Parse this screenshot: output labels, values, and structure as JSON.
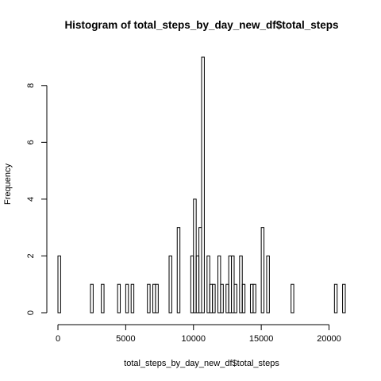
{
  "chart_data": {
    "type": "bar",
    "title": "Histogram of total_steps_by_day_new_df$total_steps",
    "xlabel": "total_steps_by_day_new_df$total_steps",
    "ylabel": "Frequency",
    "xlim": [
      0,
      21200
    ],
    "ylim": [
      0,
      9
    ],
    "bin_width": 200,
    "x_ticks": [
      0,
      5000,
      10000,
      15000,
      20000
    ],
    "x_tick_labels": [
      "0",
      "5000",
      "10000",
      "15000",
      "20000"
    ],
    "y_ticks": [
      0,
      2,
      4,
      6,
      8
    ],
    "y_tick_labels": [
      "0",
      "2",
      "4",
      "6",
      "8"
    ],
    "grid": false,
    "bars": [
      {
        "x0": 0,
        "x1": 200,
        "count": 2
      },
      {
        "x0": 2400,
        "x1": 2600,
        "count": 1
      },
      {
        "x0": 3200,
        "x1": 3400,
        "count": 1
      },
      {
        "x0": 4400,
        "x1": 4600,
        "count": 1
      },
      {
        "x0": 5000,
        "x1": 5200,
        "count": 1
      },
      {
        "x0": 5400,
        "x1": 5600,
        "count": 1
      },
      {
        "x0": 6600,
        "x1": 6800,
        "count": 1
      },
      {
        "x0": 7000,
        "x1": 7200,
        "count": 1
      },
      {
        "x0": 7200,
        "x1": 7400,
        "count": 1
      },
      {
        "x0": 8200,
        "x1": 8400,
        "count": 2
      },
      {
        "x0": 8800,
        "x1": 9000,
        "count": 3
      },
      {
        "x0": 9800,
        "x1": 10000,
        "count": 2
      },
      {
        "x0": 10000,
        "x1": 10200,
        "count": 4
      },
      {
        "x0": 10200,
        "x1": 10400,
        "count": 2
      },
      {
        "x0": 10400,
        "x1": 10600,
        "count": 3
      },
      {
        "x0": 10600,
        "x1": 10800,
        "count": 9
      },
      {
        "x0": 11000,
        "x1": 11200,
        "count": 2
      },
      {
        "x0": 11200,
        "x1": 11400,
        "count": 1
      },
      {
        "x0": 11400,
        "x1": 11600,
        "count": 1
      },
      {
        "x0": 11800,
        "x1": 12000,
        "count": 2
      },
      {
        "x0": 12000,
        "x1": 12200,
        "count": 1
      },
      {
        "x0": 12400,
        "x1": 12600,
        "count": 1
      },
      {
        "x0": 12600,
        "x1": 12800,
        "count": 2
      },
      {
        "x0": 12800,
        "x1": 13000,
        "count": 2
      },
      {
        "x0": 13000,
        "x1": 13200,
        "count": 1
      },
      {
        "x0": 13400,
        "x1": 13600,
        "count": 2
      },
      {
        "x0": 13600,
        "x1": 13800,
        "count": 1
      },
      {
        "x0": 14200,
        "x1": 14400,
        "count": 1
      },
      {
        "x0": 14400,
        "x1": 14600,
        "count": 1
      },
      {
        "x0": 15000,
        "x1": 15200,
        "count": 3
      },
      {
        "x0": 15400,
        "x1": 15600,
        "count": 2
      },
      {
        "x0": 17200,
        "x1": 17400,
        "count": 1
      },
      {
        "x0": 20400,
        "x1": 20600,
        "count": 1
      },
      {
        "x0": 21000,
        "x1": 21200,
        "count": 1
      }
    ]
  }
}
